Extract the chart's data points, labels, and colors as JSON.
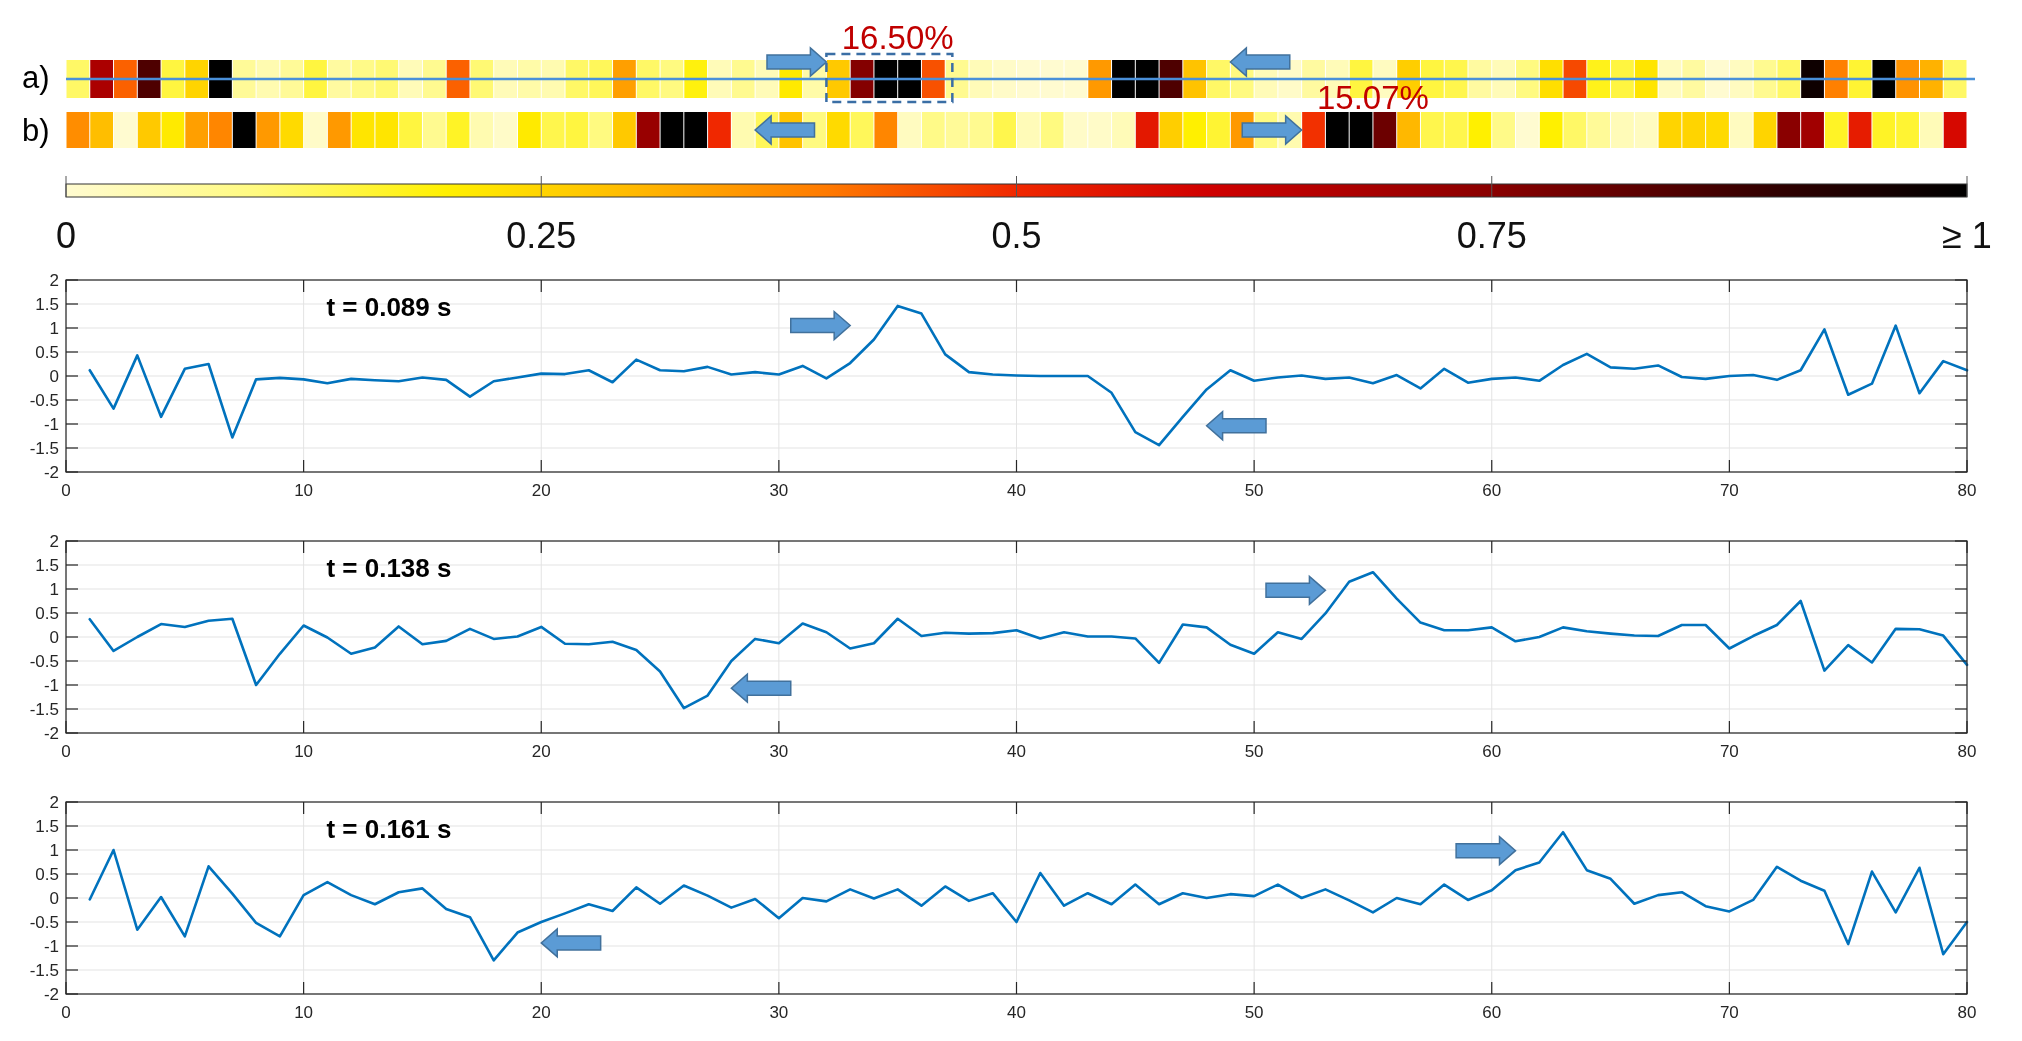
{
  "chart_data": [
    {
      "type": "heatmap",
      "annotations": [
        "16.50%",
        "15.07%"
      ],
      "categories": [
        null,
        null,
        null,
        null,
        null,
        null,
        null,
        null,
        null,
        null,
        null,
        null,
        null,
        null,
        null,
        null,
        null,
        null,
        null,
        null,
        null,
        null,
        null,
        null,
        null,
        null,
        null,
        null,
        null,
        null,
        null,
        null,
        null,
        null,
        null,
        null,
        null,
        null,
        null,
        null,
        null,
        null,
        null,
        null,
        null,
        null,
        null,
        null,
        null,
        null,
        null,
        null,
        null,
        null,
        null,
        null,
        null,
        null,
        null,
        null,
        null,
        null,
        null,
        null,
        null,
        null,
        null,
        null,
        null,
        null,
        null,
        null,
        null,
        null,
        null,
        null,
        null,
        null,
        null,
        null
      ],
      "y_categories": [
        "a)",
        "b)"
      ],
      "cells": [
        [
          0.12,
          0.68,
          0.43,
          0.85,
          0.15,
          0.25,
          1,
          0.07,
          0.04,
          0.07,
          0.15,
          0.06,
          0.09,
          0.11,
          0.03,
          0.08,
          0.43,
          0.11,
          0.03,
          0.05,
          0.04,
          0.12,
          0.13,
          0.34,
          0.12,
          0.1,
          0.19,
          0.03,
          0.08,
          0.03,
          0.21,
          0.05,
          0.27,
          0.76,
          1,
          1,
          0.45,
          0.08,
          0.03,
          0.01,
          0,
          0,
          0,
          0.35,
          1,
          1,
          0.85,
          0.28,
          0.12,
          0.1,
          0.03,
          0.01,
          0.06,
          0.03,
          0.15,
          0.02,
          0.26,
          0.15,
          0.14,
          0.06,
          0.03,
          0.1,
          0.23,
          0.46,
          0.18,
          0.15,
          0.22,
          0.02,
          0.06,
          0,
          0.02,
          0.08,
          0.12,
          0.97,
          0.39,
          0.16,
          1,
          0.36,
          0.31,
          0.12
        ],
        [
          0.37,
          0.29,
          0,
          0.27,
          0.21,
          0.34,
          0.38,
          1,
          0.35,
          0.24,
          0.01,
          0.35,
          0.22,
          0.22,
          0.15,
          0.08,
          0.17,
          0.04,
          0.01,
          0.21,
          0.14,
          0.15,
          0.1,
          0.27,
          0.72,
          1,
          1,
          0.5,
          0.04,
          0.13,
          0.28,
          0.1,
          0.24,
          0.13,
          0.38,
          0.02,
          0.09,
          0.07,
          0.08,
          0.14,
          0.03,
          0.1,
          0.01,
          0.01,
          0.03,
          0.54,
          0.26,
          0.2,
          0.16,
          0.35,
          0.1,
          0.04,
          0.49,
          1,
          1,
          0.8,
          0.3,
          0.14,
          0.14,
          0.2,
          0.09,
          0,
          0.2,
          0.12,
          0.07,
          0.03,
          0.02,
          0.25,
          0.25,
          0.24,
          0.02,
          0.25,
          0.75,
          0.7,
          0.17,
          0.53,
          0.17,
          0.16,
          0.03,
          0.58
        ]
      ],
      "clim": [
        0,
        1
      ],
      "cticks": [
        0,
        0.25,
        0.5,
        0.75,
        {
          "value": 1,
          "label": "≥ 1"
        }
      ],
      "ref_lines": [
        {
          "axis": "y",
          "value": "a)",
          "color": "#4a90d9"
        }
      ]
    },
    {
      "type": "line",
      "annotations": [
        "t = 0.089 s"
      ],
      "x": [
        1,
        2,
        3,
        4,
        5,
        6,
        7,
        8,
        9,
        10,
        11,
        12,
        13,
        14,
        15,
        16,
        17,
        18,
        19,
        20,
        21,
        22,
        23,
        24,
        25,
        26,
        27,
        28,
        29,
        30,
        31,
        32,
        33,
        34,
        35,
        36,
        37,
        38,
        39,
        40,
        41,
        42,
        43,
        44,
        45,
        46,
        47,
        48,
        49,
        50,
        51,
        52,
        53,
        54,
        55,
        56,
        57,
        58,
        59,
        60,
        61,
        62,
        63,
        64,
        65,
        66,
        67,
        68,
        69,
        70,
        71,
        72,
        73,
        74,
        75,
        76,
        77,
        78,
        79,
        80
      ],
      "series": [
        {
          "color": "#0072bd",
          "values": [
            0.12,
            -0.68,
            0.43,
            -0.85,
            0.15,
            0.25,
            -1.28,
            -0.07,
            -0.04,
            -0.07,
            -0.15,
            -0.06,
            -0.09,
            -0.11,
            -0.03,
            -0.08,
            -0.43,
            -0.11,
            -0.03,
            0.05,
            0.04,
            0.12,
            -0.13,
            0.34,
            0.12,
            0.1,
            0.19,
            0.03,
            0.08,
            0.03,
            0.21,
            -0.05,
            0.27,
            0.76,
            1.46,
            1.3,
            0.45,
            0.08,
            0.03,
            0.01,
            0,
            0,
            0,
            -0.35,
            -1.17,
            -1.44,
            -0.85,
            -0.28,
            0.12,
            -0.1,
            -0.03,
            0.01,
            -0.06,
            -0.03,
            -0.15,
            0.02,
            -0.26,
            0.15,
            -0.14,
            -0.06,
            -0.03,
            -0.1,
            0.23,
            0.46,
            0.18,
            0.15,
            0.22,
            -0.02,
            -0.06,
            0,
            0.02,
            -0.08,
            0.12,
            0.97,
            -0.39,
            -0.16,
            1.05,
            -0.36,
            0.31,
            0.12
          ]
        }
      ],
      "xlim": [
        0,
        80
      ],
      "ylim": [
        -2,
        2
      ],
      "xticks": [
        0,
        10,
        20,
        30,
        40,
        50,
        60,
        70,
        80
      ],
      "yticks": [
        -2,
        -1.5,
        -1,
        -0.5,
        0,
        0.5,
        1,
        1.5,
        2
      ],
      "grid": true
    },
    {
      "type": "line",
      "annotations": [
        "t = 0.138 s"
      ],
      "x": [
        1,
        2,
        3,
        4,
        5,
        6,
        7,
        8,
        9,
        10,
        11,
        12,
        13,
        14,
        15,
        16,
        17,
        18,
        19,
        20,
        21,
        22,
        23,
        24,
        25,
        26,
        27,
        28,
        29,
        30,
        31,
        32,
        33,
        34,
        35,
        36,
        37,
        38,
        39,
        40,
        41,
        42,
        43,
        44,
        45,
        46,
        47,
        48,
        49,
        50,
        51,
        52,
        53,
        54,
        55,
        56,
        57,
        58,
        59,
        60,
        61,
        62,
        63,
        64,
        65,
        66,
        67,
        68,
        69,
        70,
        71,
        72,
        73,
        74,
        75,
        76,
        77,
        78,
        79,
        80
      ],
      "series": [
        {
          "color": "#0072bd",
          "values": [
            0.37,
            -0.29,
            0,
            0.27,
            0.21,
            0.34,
            0.38,
            -1,
            -0.35,
            0.24,
            -0.01,
            -0.35,
            -0.22,
            0.22,
            -0.15,
            -0.08,
            0.17,
            -0.04,
            0.01,
            0.21,
            -0.14,
            -0.15,
            -0.1,
            -0.27,
            -0.72,
            -1.48,
            -1.22,
            -0.5,
            -0.04,
            -0.13,
            0.28,
            0.1,
            -0.24,
            -0.13,
            0.38,
            0.02,
            0.09,
            0.07,
            0.08,
            0.14,
            -0.03,
            0.1,
            0.01,
            0.01,
            -0.03,
            -0.54,
            0.26,
            0.2,
            -0.16,
            -0.35,
            0.1,
            -0.04,
            0.49,
            1.15,
            1.35,
            0.8,
            0.3,
            0.14,
            0.14,
            0.2,
            -0.09,
            0,
            0.2,
            0.12,
            0.07,
            0.03,
            0.02,
            0.25,
            0.25,
            -0.24,
            0.02,
            0.25,
            0.75,
            -0.7,
            -0.17,
            -0.53,
            0.17,
            0.16,
            0.03,
            -0.58
          ]
        }
      ],
      "xlim": [
        0,
        80
      ],
      "ylim": [
        -2,
        2
      ],
      "xticks": [
        0,
        10,
        20,
        30,
        40,
        50,
        60,
        70,
        80
      ],
      "yticks": [
        -2,
        -1.5,
        -1,
        -0.5,
        0,
        0.5,
        1,
        1.5,
        2
      ],
      "grid": true
    },
    {
      "type": "line",
      "annotations": [
        "t = 0.161 s"
      ],
      "x": [
        1,
        2,
        3,
        4,
        5,
        6,
        7,
        8,
        9,
        10,
        11,
        12,
        13,
        14,
        15,
        16,
        17,
        18,
        19,
        20,
        21,
        22,
        23,
        24,
        25,
        26,
        27,
        28,
        29,
        30,
        31,
        32,
        33,
        34,
        35,
        36,
        37,
        38,
        39,
        40,
        41,
        42,
        43,
        44,
        45,
        46,
        47,
        48,
        49,
        50,
        51,
        52,
        53,
        54,
        55,
        56,
        57,
        58,
        59,
        60,
        61,
        62,
        63,
        64,
        65,
        66,
        67,
        68,
        69,
        70,
        71,
        72,
        73,
        74,
        75,
        76,
        77,
        78,
        79,
        80
      ],
      "series": [
        {
          "color": "#0072bd",
          "values": [
            -0.03,
            1,
            -0.66,
            0.02,
            -0.8,
            0.66,
            0.09,
            -0.52,
            -0.8,
            0.06,
            0.33,
            0.06,
            -0.13,
            0.12,
            0.2,
            -0.23,
            -0.4,
            -1.3,
            -0.72,
            -0.5,
            -0.32,
            -0.13,
            -0.27,
            0.22,
            -0.12,
            0.26,
            0.05,
            -0.2,
            -0.02,
            -0.42,
            0,
            -0.07,
            0.18,
            -0.01,
            0.18,
            -0.16,
            0.24,
            -0.06,
            0.1,
            -0.5,
            0.52,
            -0.16,
            0.1,
            -0.13,
            0.28,
            -0.13,
            0.1,
            0,
            0.08,
            0.04,
            0.28,
            0,
            0.18,
            -0.05,
            -0.3,
            0,
            -0.13,
            0.28,
            -0.04,
            0.16,
            0.58,
            0.74,
            1.37,
            0.58,
            0.4,
            -0.12,
            0.06,
            0.12,
            -0.17,
            -0.28,
            -0.04,
            0.65,
            0.36,
            0.15,
            -0.96,
            0.55,
            -0.3,
            0.63,
            -1.17,
            -0.5
          ]
        }
      ],
      "xlim": [
        0,
        80
      ],
      "ylim": [
        -2,
        2
      ],
      "xticks": [
        0,
        10,
        20,
        30,
        40,
        50,
        60,
        70,
        80
      ],
      "yticks": [
        -2,
        -1.5,
        -1,
        -0.5,
        0,
        0.5,
        1,
        1.5,
        2
      ],
      "grid": true
    }
  ]
}
